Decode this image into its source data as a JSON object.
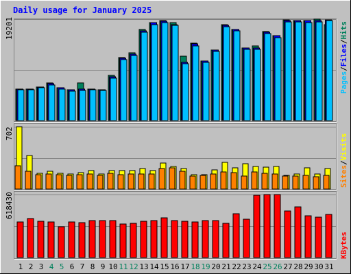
{
  "title": "Daily usage for January 2025",
  "colors": {
    "background": "#c0c0c0",
    "hits": "#00805c",
    "files": "#0000ff",
    "pages": "#00c0ff",
    "visits": "#ffff00",
    "sites": "#ff8000",
    "kbytes": "#ff0000",
    "weekend_label": "#00805c",
    "title": "#0000ff"
  },
  "panels": {
    "top": {
      "ymax_label": "19201",
      "legend": [
        "Pages",
        "Files",
        "Hits"
      ],
      "legend_sep": "/"
    },
    "middle": {
      "ymax_label": "702",
      "legend": [
        "Sites",
        "Visits"
      ],
      "legend_sep": "/"
    },
    "bottom": {
      "ymax_label": "618430",
      "legend": [
        "KBytes"
      ]
    }
  },
  "chart_data": {
    "type": "bar",
    "title": "Daily usage for January 2025",
    "categories": [
      "1",
      "2",
      "3",
      "4",
      "5",
      "6",
      "7",
      "8",
      "9",
      "10",
      "11",
      "12",
      "13",
      "14",
      "15",
      "16",
      "17",
      "18",
      "19",
      "20",
      "21",
      "22",
      "23",
      "24",
      "25",
      "26",
      "27",
      "28",
      "29",
      "30",
      "31"
    ],
    "weekend_days": [
      "4",
      "5",
      "11",
      "12",
      "18",
      "19",
      "25",
      "26"
    ],
    "panels": [
      {
        "name": "traffic",
        "ylim": [
          0,
          19201
        ],
        "series": [
          {
            "name": "Hits",
            "values": [
              6000,
              6000,
              6400,
              7200,
              6200,
              5800,
              7200,
              6000,
              5900,
              8500,
              12000,
              12800,
              17200,
              18500,
              19000,
              18500,
              12200,
              14700,
              11300,
              13400,
              18200,
              17300,
              13700,
              14100,
              16900,
              16100,
              19100,
              19000,
              19000,
              19201,
              18200
            ]
          },
          {
            "name": "Files",
            "values": [
              6000,
              6000,
              6400,
              7000,
              6200,
              5800,
              6000,
              6000,
              5900,
              8300,
              11800,
              12600,
              17000,
              18500,
              18800,
              18200,
              11000,
              14500,
              11300,
              13400,
              18000,
              17200,
              13700,
              13700,
              16700,
              16100,
              18900,
              18900,
              18900,
              18900,
              19100
            ]
          },
          {
            "name": "Pages",
            "values": [
              5800,
              5800,
              6200,
              6800,
              6000,
              5600,
              5700,
              5800,
              5700,
              8100,
              11500,
              12300,
              16800,
              18200,
              18600,
              18000,
              10800,
              14200,
              11000,
              13100,
              17800,
              17000,
              13500,
              13500,
              16500,
              15700,
              18700,
              18700,
              18600,
              18700,
              19000
            ]
          }
        ]
      },
      {
        "name": "visitors",
        "ylim": [
          0,
          702
        ],
        "series": [
          {
            "name": "Visits",
            "values": [
              702,
              381,
              174,
              200,
              178,
              168,
              185,
              207,
              166,
              209,
              207,
              209,
              229,
              209,
              293,
              253,
              229,
              162,
              162,
              213,
              303,
              240,
              282,
              253,
              250,
              253,
              157,
              166,
              238,
              166,
              230
            ]
          },
          {
            "name": "Sites",
            "values": [
              260,
              204,
              164,
              172,
              163,
              151,
              162,
              168,
              151,
              174,
              163,
              170,
              168,
              168,
              234,
              238,
              204,
              145,
              151,
              168,
              196,
              183,
              150,
              195,
              180,
              168,
              148,
              148,
              154,
              138,
              158
            ]
          }
        ]
      },
      {
        "name": "volume",
        "ylim": [
          0,
          618430
        ],
        "series": [
          {
            "name": "KBytes",
            "values": [
              350000,
              385000,
              355000,
              350000,
              300000,
              350000,
              340000,
              360000,
              360000,
              365000,
              330000,
              335000,
              355000,
              365000,
              390000,
              365000,
              355000,
              350000,
              360000,
              360000,
              335000,
              430000,
              375000,
              615000,
              620000,
              618430,
              460000,
              500000,
              410000,
              395000,
              425000
            ]
          }
        ]
      }
    ]
  }
}
